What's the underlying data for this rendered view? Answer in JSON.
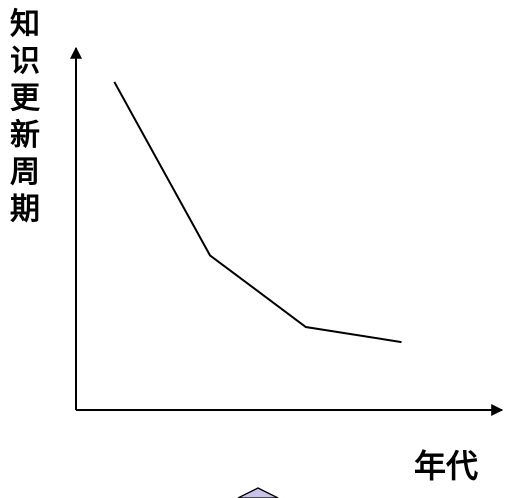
{
  "chart_data": {
    "type": "line",
    "ylabel": "知识更新周期",
    "xlabel": "年代",
    "grid": false,
    "x": [
      1,
      2,
      3,
      4
    ],
    "series": [
      {
        "values": [
          100,
          54,
          35,
          31
        ]
      }
    ],
    "xlim": [
      0.6,
      5.05
    ],
    "ylim": [
      13,
      109
    ],
    "colors": {
      "line": "#000000",
      "axis": "#000000",
      "partial-shape": "#c8c4e8"
    }
  }
}
